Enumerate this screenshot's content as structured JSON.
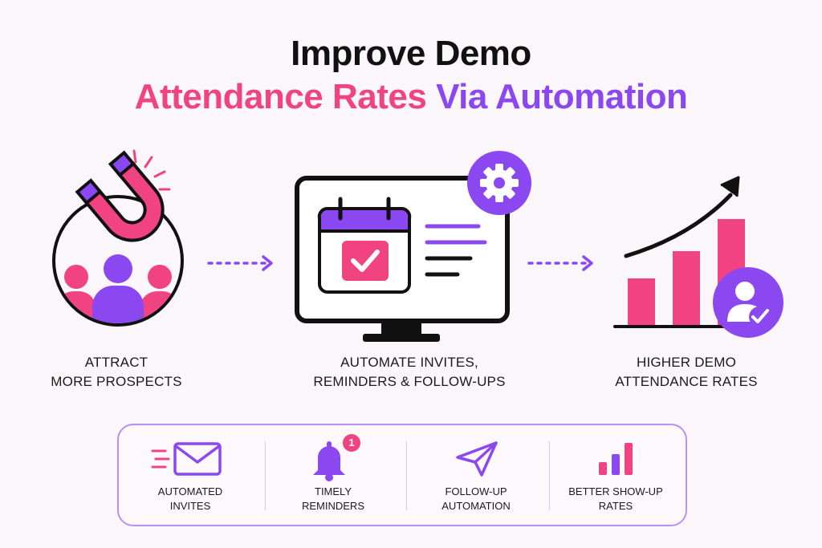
{
  "title": {
    "line1": "Improve Demo",
    "line2_part1": "Attendance Rates",
    "line2_part2": "Via Automation"
  },
  "colors": {
    "pink": "#f0437f",
    "purple": "#8b47f0",
    "dark": "#111111",
    "light_purple": "#b690f5"
  },
  "steps": [
    {
      "line1": "ATTRACT",
      "line2": "MORE PROSPECTS",
      "icon": "magnet-people-icon"
    },
    {
      "line1": "AUTOMATE INVITES,",
      "line2": "REMINDERS & FOLLOW-UPS",
      "icon": "monitor-calendar-gear-icon"
    },
    {
      "line1": "HIGHER DEMO",
      "line2": "ATTENDANCE RATES",
      "icon": "bar-chart-growth-icon"
    }
  ],
  "features": [
    {
      "line1": "AUTOMATED",
      "line2": "INVITES",
      "icon": "envelope-icon"
    },
    {
      "line1": "TIMELY",
      "line2": "REMINDERS",
      "icon": "bell-icon",
      "badge": "1"
    },
    {
      "line1": "FOLLOW-UP",
      "line2": "AUTOMATION",
      "icon": "paper-plane-icon"
    },
    {
      "line1": "BETTER SHOW-UP",
      "line2": "RATES",
      "icon": "mini-bar-chart-icon"
    }
  ]
}
